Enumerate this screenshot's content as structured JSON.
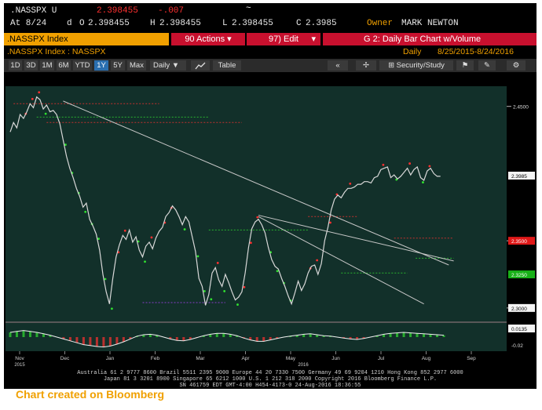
{
  "header": {
    "ticker": ".NASSPX U",
    "last": "2.398455",
    "change": "-.007",
    "at_label": "At 8/24",
    "d_label": "d",
    "o_label": "O",
    "o_value": "2.398455",
    "h_label": "H",
    "h_value": "2.398455",
    "l_label": "L",
    "l_value": "2.398455",
    "c_label": "C",
    "c_value": "2.3985",
    "owner_label": "Owner",
    "owner_name": "MARK NEWTON"
  },
  "menu": {
    "index_name": ".NASSPX Index",
    "actions": "90 Actions",
    "edit": "97) Edit",
    "graph_title": "G 2: Daily Bar Chart w/Volume"
  },
  "subheader": {
    "index_path": ".NASSPX Index : NASSPX",
    "period": "Daily",
    "date_range": "8/25/2015-8/24/2016"
  },
  "toolbar": {
    "ranges": [
      "1D",
      "3D",
      "1M",
      "6M",
      "YTD",
      "1Y",
      "5Y",
      "Max"
    ],
    "selected": "1Y",
    "frequency": "Daily",
    "table": "Table",
    "security_study": "Security/Study"
  },
  "chart_data": {
    "type": "line",
    "title": "",
    "x_ticks": [
      "Nov",
      "Dec",
      "Jan",
      "Feb",
      "Mar",
      "Apr",
      "May",
      "Jun",
      "Jul",
      "Aug",
      "Sep"
    ],
    "x_years": [
      "2015",
      "2016"
    ],
    "y_ticks": [
      "2.4500",
      "2.3500",
      "2.3000"
    ],
    "y_tag_labels": [
      "2.3985",
      "2.3500",
      "2.3250",
      "2.3000"
    ],
    "ylim": [
      2.29,
      2.465
    ],
    "price_series": {
      "x": [
        0,
        2,
        4,
        6,
        8,
        10,
        12,
        14,
        16,
        18,
        20,
        22,
        24,
        26,
        28,
        30,
        32,
        34,
        36,
        38,
        40,
        42,
        44,
        46,
        48,
        50,
        52,
        54,
        56,
        58,
        60,
        62,
        64,
        66,
        68,
        70,
        72,
        74,
        76,
        78,
        80,
        82,
        84,
        86,
        88,
        90,
        92,
        94,
        96,
        98,
        100,
        102,
        104,
        106,
        108,
        110,
        112,
        114,
        116,
        118,
        120,
        122,
        124,
        126,
        128,
        130,
        132,
        134,
        136,
        138,
        140,
        142,
        144,
        146,
        148,
        150,
        152,
        154,
        156,
        158,
        160,
        162,
        164,
        166,
        168,
        170,
        172,
        174,
        176,
        178,
        180,
        182,
        184,
        186,
        188,
        190,
        192,
        194,
        196,
        198,
        200,
        202,
        204,
        206,
        208,
        210,
        212,
        214,
        216,
        218,
        220,
        222,
        224,
        226,
        228,
        230,
        232,
        234,
        236,
        238,
        240,
        242,
        244,
        246,
        248,
        250,
        252,
        254,
        256,
        258,
        260
      ],
      "values": [
        2.431,
        2.438,
        2.434,
        2.444,
        2.441,
        2.446,
        2.452,
        2.449,
        2.457,
        2.455,
        2.448,
        2.451,
        2.446,
        2.447,
        2.444,
        2.437,
        2.425,
        2.413,
        2.404,
        2.397,
        2.389,
        2.383,
        2.375,
        2.378,
        2.366,
        2.361,
        2.355,
        2.343,
        2.325,
        2.312,
        2.303,
        2.322,
        2.338,
        2.347,
        2.354,
        2.351,
        2.358,
        2.349,
        2.353,
        2.343,
        2.338,
        2.346,
        2.349,
        2.344,
        2.352,
        2.357,
        2.36,
        2.368,
        2.371,
        2.376,
        2.373,
        2.368,
        2.362,
        2.368,
        2.364,
        2.353,
        2.342,
        2.322,
        2.316,
        2.302,
        2.31,
        2.326,
        2.33,
        2.321,
        2.316,
        2.325,
        2.319,
        2.312,
        2.306,
        2.308,
        2.312,
        2.326,
        2.345,
        2.359,
        2.364,
        2.366,
        2.362,
        2.356,
        2.345,
        2.336,
        2.331,
        2.329,
        2.322,
        2.316,
        2.309,
        2.303,
        2.311,
        2.32,
        2.313,
        2.318,
        2.326,
        2.331,
        2.332,
        2.325,
        2.333,
        2.35,
        2.36,
        2.373,
        2.381,
        2.384,
        2.382,
        2.386,
        2.389,
        2.389,
        2.39,
        2.392,
        2.392,
        2.394,
        2.394,
        2.393,
        2.397,
        2.398,
        2.403,
        2.404,
        2.405,
        2.397,
        2.399,
        2.396,
        2.398,
        2.401,
        2.404,
        2.399,
        2.403,
        2.405,
        2.397,
        2.395,
        2.402,
        2.404,
        2.4,
        2.398,
        2.398
      ]
    },
    "trendlines": [
      {
        "from": [
          32,
          2.454
        ],
        "to": [
          265,
          2.332
        ]
      },
      {
        "from": [
          150,
          2.368
        ],
        "to": [
          250,
          2.303
        ]
      },
      {
        "from": [
          150,
          2.369
        ],
        "to": [
          268,
          2.335
        ]
      }
    ],
    "oscillator": {
      "y_ticks": [
        "0.0135",
        "-0.02"
      ],
      "values": [
        0.01,
        0.012,
        0.014,
        0.012,
        0.01,
        0.007,
        0.004,
        0.0,
        -0.004,
        -0.008,
        -0.012,
        -0.016,
        -0.018,
        -0.02,
        -0.021,
        -0.019,
        -0.015,
        -0.01,
        -0.004,
        0.002,
        0.005,
        0.006,
        0.004,
        0.0,
        -0.004,
        -0.007,
        -0.008,
        -0.005,
        -0.001,
        0.003,
        0.006,
        0.008,
        0.008,
        0.006,
        0.003,
        -0.002,
        -0.006,
        -0.009,
        -0.009,
        -0.006,
        -0.003,
        0.0,
        0.002,
        0.004,
        0.006,
        0.007,
        0.005,
        0.003,
        0.002,
        0.0,
        -0.002,
        -0.004,
        -0.005,
        -0.003,
        0.0,
        0.003,
        0.006,
        0.008,
        0.009,
        0.01,
        0.009,
        0.008,
        0.007,
        0.006,
        0.005,
        0.004
      ]
    }
  },
  "footer": {
    "line1": "Australia 61 2 9777 8600 Brazil 5511 2395 9000 Europe 44 20 7330 7500 Germany 49 69 9204 1210 Hong Kong 852 2977 6000",
    "line2": "Japan 81 3 3201 8900     Singapore 65 6212 1000     U.S. 1 212 318 2000      Copyright 2016 Bloomberg Finance L.P.",
    "line3": "SN 461759 EDT  GMT-4:00 H454-4173-0 24-Aug-2016 18:36:55"
  },
  "credit": "Chart created on Bloomberg",
  "colors": {
    "amber": "#f0a000",
    "menu_red": "#c8102e",
    "chart_bg": "#12302a",
    "price_line": "#d8d8d8",
    "signal_green": "#30e030",
    "signal_red": "#ff3030",
    "signal_purple": "#b040ff",
    "tag_red": "#e01818",
    "tag_green": "#18b018",
    "tag_white": "#f4f4f4",
    "tag_purple": "#c040ff"
  }
}
